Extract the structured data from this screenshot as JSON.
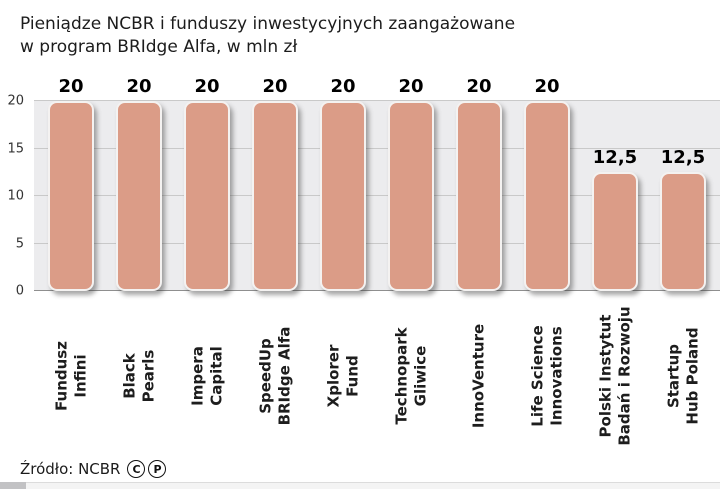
{
  "title": "Pieniądze NCBR i funduszy inwestycyjnych zaangażowane\nw program BRIdge Alfa, w mln zł",
  "source": {
    "label": "Źródło: NCBR",
    "license_icons": [
      "C",
      "P"
    ]
  },
  "chart_data": {
    "type": "bar",
    "title": "Pieniądze NCBR i funduszy inwestycyjnych zaangażowane w program BRIdge Alfa, w mln zł",
    "categories": [
      "Fundusz\nInfini",
      "Black\nPearls",
      "Impera\nCapital",
      "SpeedUp\nBRIdge Alfa",
      "Xplorer\nFund",
      "Technopark\nGliwice",
      "InnoVenture",
      "Life Science\nInnovations",
      "Polski Instytut\nBadań i Rozwoju",
      "Startup\nHub Poland"
    ],
    "values": [
      20,
      20,
      20,
      20,
      20,
      20,
      20,
      20,
      12.5,
      12.5
    ],
    "value_labels": [
      "20",
      "20",
      "20",
      "20",
      "20",
      "20",
      "20",
      "20",
      "12,5",
      "12,5"
    ],
    "xlabel": "",
    "ylabel": "",
    "ylim": [
      0,
      20
    ],
    "yticks": [
      0,
      5,
      10,
      15,
      20
    ],
    "grid": true,
    "legend": false,
    "bar_color": "#db9c87",
    "plot_bg_color": "#ececee"
  }
}
